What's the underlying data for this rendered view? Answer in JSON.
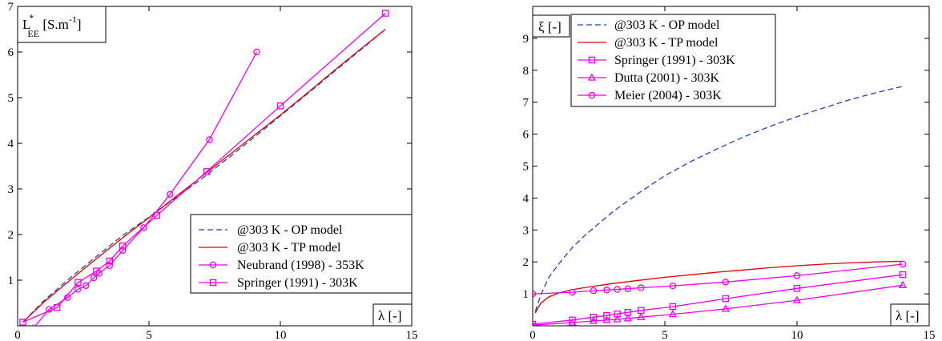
{
  "chart_data": [
    {
      "type": "line",
      "title": "",
      "xlabel": "λ [-]",
      "ylabel": "L*EE [S.m-1]",
      "ylabel_parts": {
        "base": "L",
        "sup": "*",
        "sub": "EE",
        "unit_main": " [S.m",
        "unit_sup": "-1",
        "unit_end": "]"
      },
      "xlim": [
        0,
        15
      ],
      "ylim": [
        0,
        7
      ],
      "xticks": [
        0,
        5,
        10,
        15
      ],
      "yticks": [
        1,
        2,
        3,
        4,
        5,
        6,
        7
      ],
      "grid": false,
      "legend_position": "bottom-right",
      "series": [
        {
          "name": "@303 K - OP model",
          "color": "#1f3fbf",
          "style": "dashed",
          "marker": "none",
          "x": [
            0.2,
            1,
            2,
            3,
            4,
            5,
            6,
            7,
            8,
            9,
            10,
            11,
            12,
            13,
            14
          ],
          "y": [
            0.08,
            0.55,
            1.05,
            1.52,
            1.98,
            2.38,
            2.8,
            3.22,
            3.67,
            4.13,
            4.6,
            5.07,
            5.55,
            6.02,
            6.5
          ]
        },
        {
          "name": "@303 K - TP model",
          "color": "#e00000",
          "style": "solid",
          "marker": "none",
          "x": [
            0.2,
            1,
            2,
            3,
            4,
            5,
            6,
            7,
            8,
            9,
            10,
            11,
            12,
            13,
            14
          ],
          "y": [
            0.08,
            0.52,
            1.0,
            1.47,
            1.93,
            2.37,
            2.82,
            3.27,
            3.72,
            4.17,
            4.62,
            5.09,
            5.57,
            6.04,
            6.5
          ]
        },
        {
          "name": "Neubrand (1998) - 353K",
          "color": "#ee00ee",
          "style": "solid",
          "marker": "circle",
          "x": [
            0.6,
            1.2,
            1.9,
            2.3,
            2.6,
            2.9,
            3.1,
            3.5,
            4.0,
            4.8,
            5.8,
            7.3,
            9.1
          ],
          "y": [
            -0.05,
            0.36,
            0.62,
            0.8,
            0.88,
            1.05,
            1.15,
            1.32,
            1.65,
            2.15,
            2.88,
            4.08,
            6.0
          ]
        },
        {
          "name": "Springer (1991) - 303K",
          "color": "#ee00ee",
          "style": "solid",
          "marker": "square",
          "x": [
            0.2,
            1.5,
            2.3,
            3.0,
            3.5,
            4.0,
            5.3,
            7.2,
            10.0,
            14.0
          ],
          "y": [
            0.08,
            0.4,
            0.95,
            1.2,
            1.42,
            1.75,
            2.42,
            3.38,
            4.82,
            6.85
          ]
        }
      ]
    },
    {
      "type": "line",
      "title": "",
      "xlabel": "λ [-]",
      "ylabel": "ξ [-]",
      "xlim": [
        0,
        15
      ],
      "ylim": [
        0,
        10
      ],
      "xticks": [
        0,
        5,
        10,
        15
      ],
      "yticks": [
        1,
        2,
        3,
        4,
        5,
        6,
        7,
        8,
        9
      ],
      "grid": false,
      "legend_position": "top-left",
      "series": [
        {
          "name": "@303 K - OP model",
          "color": "#1f3fbf",
          "style": "dashed",
          "marker": "none",
          "x": [
            0.1,
            0.3,
            0.6,
            1,
            1.5,
            2,
            3,
            4,
            5,
            6,
            7,
            8,
            9,
            10,
            11,
            12,
            13,
            14
          ],
          "y": [
            0.45,
            0.95,
            1.5,
            1.95,
            2.45,
            2.85,
            3.55,
            4.15,
            4.7,
            5.15,
            5.55,
            5.92,
            6.25,
            6.55,
            6.82,
            7.08,
            7.3,
            7.5
          ]
        },
        {
          "name": "@303 K - TP model",
          "color": "#e00000",
          "style": "solid",
          "marker": "none",
          "x": [
            0.1,
            0.3,
            0.6,
            1,
            1.5,
            2,
            3,
            4,
            5,
            6,
            7,
            8,
            9,
            10,
            11,
            12,
            13,
            14
          ],
          "y": [
            0.4,
            0.7,
            0.9,
            1.03,
            1.13,
            1.2,
            1.32,
            1.42,
            1.52,
            1.6,
            1.68,
            1.75,
            1.82,
            1.88,
            1.93,
            1.97,
            2.0,
            2.02
          ]
        },
        {
          "name": "Springer (1991) - 303K",
          "color": "#ee00ee",
          "style": "solid",
          "marker": "square",
          "x": [
            0,
            1.5,
            2.3,
            2.8,
            3.2,
            3.6,
            4.1,
            5.3,
            7.3,
            10.0,
            14.0
          ],
          "y": [
            0.05,
            0.18,
            0.27,
            0.32,
            0.37,
            0.42,
            0.48,
            0.6,
            0.85,
            1.17,
            1.6
          ]
        },
        {
          "name": "Dutta (2001) - 303K",
          "color": "#ee00ee",
          "style": "solid",
          "marker": "triangle",
          "x": [
            0,
            1.5,
            2.3,
            2.8,
            3.2,
            3.6,
            4.1,
            5.3,
            7.3,
            10.0,
            14.0
          ],
          "y": [
            0.02,
            0.1,
            0.15,
            0.18,
            0.2,
            0.23,
            0.27,
            0.36,
            0.53,
            0.8,
            1.27
          ]
        },
        {
          "name": "Meier (2004) - 303K",
          "color": "#ee00ee",
          "style": "solid",
          "marker": "circle",
          "x": [
            0,
            1.5,
            2.3,
            2.8,
            3.2,
            3.6,
            4.1,
            5.3,
            7.3,
            10.0,
            14.0
          ],
          "y": [
            1.0,
            1.05,
            1.1,
            1.12,
            1.14,
            1.16,
            1.19,
            1.25,
            1.37,
            1.57,
            1.93
          ]
        }
      ]
    }
  ]
}
